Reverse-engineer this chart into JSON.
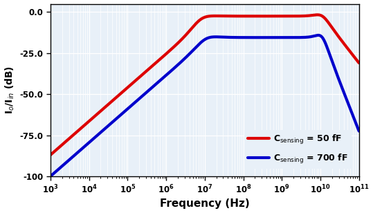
{
  "xlabel": "Frequency (Hz)",
  "ylabel": "I$_o$/I$_{in}$ (dB)",
  "xlim_log": [
    3,
    11
  ],
  "ylim": [
    -100,
    5
  ],
  "yticks": [
    0.0,
    -25.0,
    -50.0,
    -75.0,
    -100
  ],
  "ytick_labels": [
    "0.0",
    "-25.0",
    "-50.0",
    "-75.0",
    "-100"
  ],
  "background_color": "#e8f0f8",
  "grid_color": "#ffffff",
  "red_label": "C$_{\\mathrm{sensing}}$ = 50 fF",
  "blue_label": "C$_{\\mathrm{sensing}}$ = 700 fF",
  "red_color": "#dd0000",
  "blue_color": "#0000cc",
  "line_width": 3.0
}
